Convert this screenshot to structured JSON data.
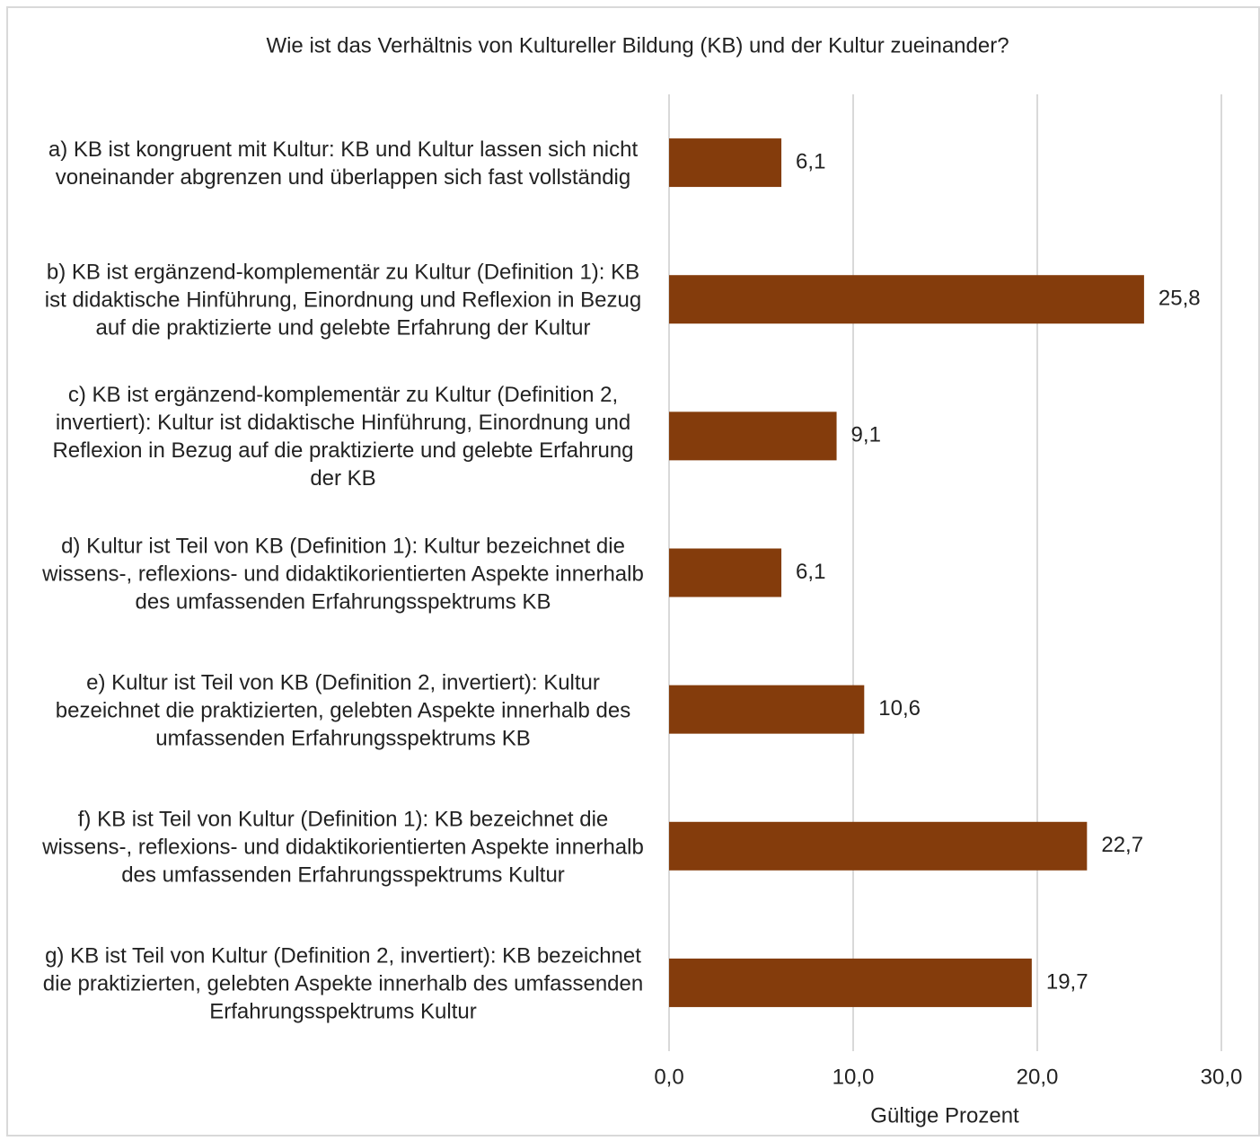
{
  "chart_data": {
    "type": "bar",
    "orientation": "horizontal",
    "title": "Wie ist das Verhältnis von Kultureller Bildung (KB) und der Kultur zueinander?",
    "categories": [
      "a) KB ist kongruent mit Kultur: KB und Kultur lassen sich nicht voneinander abgrenzen und überlappen sich fast vollständig",
      "b) KB ist ergänzend-komplementär zu Kultur (Definition 1): KB ist didaktische Hinführung, Einordnung und Reflexion in Bezug auf die praktizierte und gelebte Erfahrung der Kultur",
      "c) KB ist ergänzend-komplementär zu Kultur (Definition 2, invertiert): Kultur ist didaktische Hinführung, Einordnung und Reflexion in Bezug auf die praktizierte und gelebte Erfahrung der KB",
      "d) Kultur ist Teil von KB (Definition 1): Kultur bezeichnet die wissens-, reflexions- und didaktikorientierten Aspekte innerhalb des umfassenden Erfahrungsspektrums KB",
      "e) Kultur ist Teil von KB (Definition 2, invertiert): Kultur bezeichnet die praktizierten, gelebten Aspekte innerhalb des umfassenden Erfahrungsspektrums KB",
      "f) KB ist Teil von Kultur (Definition 1): KB bezeichnet die wissens-, reflexions- und didaktikorientierten Aspekte innerhalb des umfassenden Erfahrungsspektrums Kultur",
      "g) KB ist Teil von Kultur (Definition 2, invertiert): KB bezeichnet die praktizierten, gelebten Aspekte innerhalb des umfassenden Erfahrungsspektrums Kultur"
    ],
    "values": [
      6.1,
      25.8,
      9.1,
      6.1,
      10.6,
      22.7,
      19.7
    ],
    "value_labels": [
      "6,1",
      "25,8",
      "9,1",
      "6,1",
      "10,6",
      "22,7",
      "19,7"
    ],
    "color": "#843c0c",
    "xlabel": "Gültige Prozent",
    "xlim": [
      0,
      30
    ],
    "xticks": [
      {
        "value": 0,
        "label": "0,0"
      },
      {
        "value": 10,
        "label": "10,0"
      },
      {
        "value": 20,
        "label": "20,0"
      },
      {
        "value": 30,
        "label": "30,0"
      }
    ],
    "grid": true
  }
}
